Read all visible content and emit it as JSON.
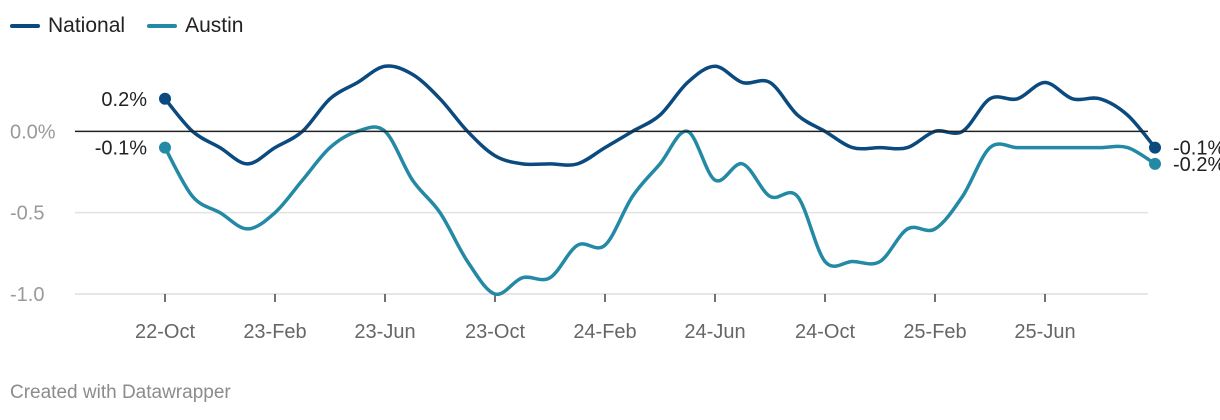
{
  "colors": {
    "national": "#0b4a7e",
    "austin": "#2489a4",
    "grid": "#e3e3e3",
    "zero": "#222222",
    "tick_text": "#9a9a9a",
    "axis_text": "#666666"
  },
  "footer": "Created with Datawrapper",
  "chart_data": {
    "type": "line",
    "x_labels": [
      "22-Oct",
      "23-Feb",
      "23-Jun",
      "23-Oct",
      "24-Feb",
      "24-Jun",
      "24-Oct",
      "25-Feb",
      "25-Jun"
    ],
    "y_ticks": [
      0.0,
      -0.5,
      -1.0
    ],
    "y_tick_labels": [
      "0.0%",
      "-0.5",
      "-1.0"
    ],
    "ylim": [
      -1.0,
      0.5
    ],
    "x_start": "2022-10",
    "x_step": "month",
    "legend": "top-left",
    "grid": true,
    "series": [
      {
        "name": "National",
        "color_key": "national",
        "values": [
          0.2,
          0.0,
          -0.1,
          -0.2,
          -0.1,
          0.0,
          0.2,
          0.3,
          0.4,
          0.35,
          0.2,
          0.0,
          -0.15,
          -0.2,
          -0.2,
          -0.2,
          -0.1,
          0.0,
          0.1,
          0.3,
          0.4,
          0.3,
          0.3,
          0.1,
          0.0,
          -0.1,
          -0.1,
          -0.1,
          0.0,
          0.0,
          0.2,
          0.2,
          0.3,
          0.2,
          0.2,
          0.1,
          -0.1
        ],
        "start_label": "0.2%",
        "end_label": "-0.1%"
      },
      {
        "name": "Austin",
        "color_key": "austin",
        "values": [
          -0.1,
          -0.4,
          -0.5,
          -0.6,
          -0.5,
          -0.3,
          -0.1,
          0.0,
          0.0,
          -0.3,
          -0.5,
          -0.8,
          -1.0,
          -0.9,
          -0.9,
          -0.7,
          -0.7,
          -0.4,
          -0.2,
          0.0,
          -0.3,
          -0.2,
          -0.4,
          -0.4,
          -0.8,
          -0.8,
          -0.8,
          -0.6,
          -0.6,
          -0.4,
          -0.1,
          -0.1,
          -0.1,
          -0.1,
          -0.1,
          -0.1,
          -0.2
        ],
        "start_label": "-0.1%",
        "end_label": "-0.2%"
      }
    ]
  },
  "legend_items": [
    {
      "label": "National",
      "color_key": "national"
    },
    {
      "label": "Austin",
      "color_key": "austin"
    }
  ]
}
